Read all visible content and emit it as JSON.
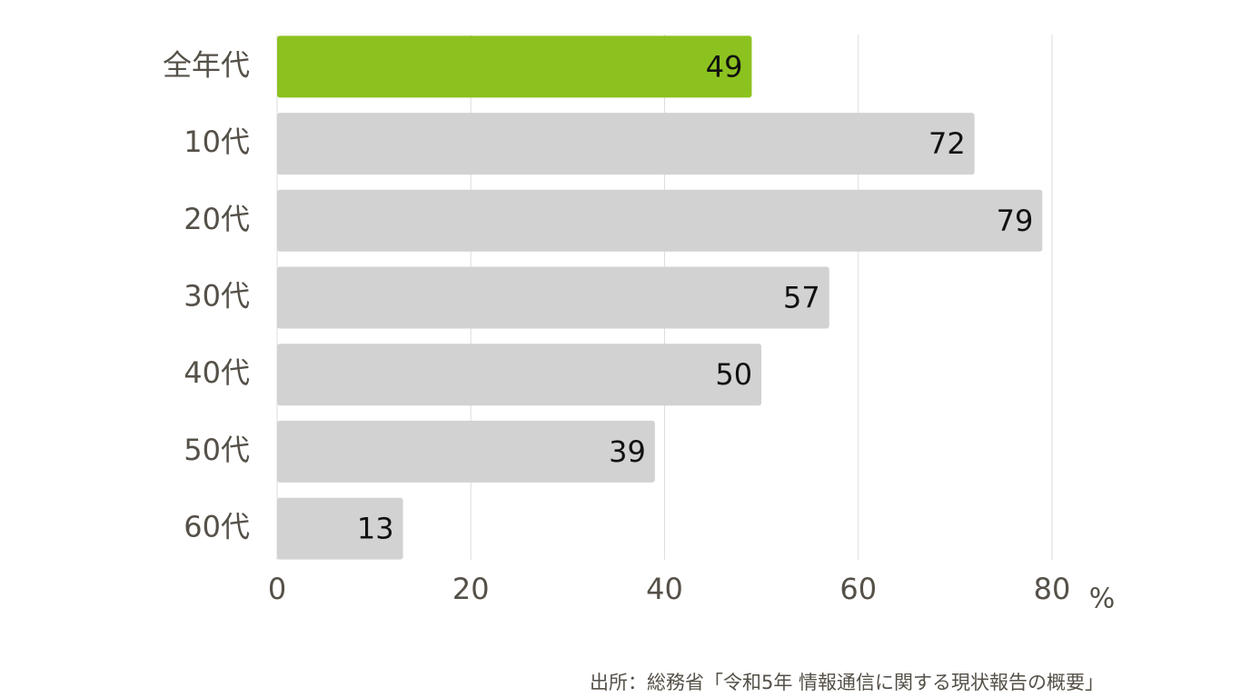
{
  "chart_data": {
    "type": "barh",
    "categories": [
      "全年代",
      "10代",
      "20代",
      "30代",
      "40代",
      "50代",
      "60代"
    ],
    "values": [
      49,
      72,
      79,
      57,
      50,
      39,
      13
    ],
    "colors": [
      "#8cc21f",
      "#d2d2d2",
      "#d2d2d2",
      "#d2d2d2",
      "#d2d2d2",
      "#d2d2d2",
      "#d2d2d2"
    ],
    "xlim": [
      0,
      80
    ],
    "xticks": [
      0,
      20,
      40,
      60,
      80
    ],
    "grid": true,
    "x_label": "%",
    "source": "出所：総務省「令和5年 情報通信に関する現状報告の概要」"
  }
}
